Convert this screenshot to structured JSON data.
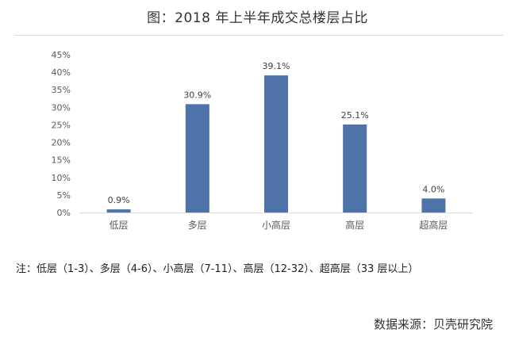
{
  "title": "图：2018 年上半年成交总楼层占比",
  "note": "注：低层（1-3）、多层（4-6）、小高层（7-11）、高层（12-32）、超高层（33 层以上）",
  "source": "数据来源：贝壳研究院",
  "colors": {
    "bar": "#4e73a8",
    "axis": "#d9d9d9",
    "text": "#595959"
  },
  "chart_data": {
    "type": "bar",
    "title": "图：2018 年上半年成交总楼层占比",
    "categories": [
      "低层",
      "多层",
      "小高层",
      "高层",
      "超高层"
    ],
    "values": [
      0.9,
      30.9,
      39.1,
      25.1,
      4.0
    ],
    "value_labels": [
      "0.9%",
      "30.9%",
      "39.1%",
      "25.1%",
      "4.0%"
    ],
    "ylim": [
      0,
      45
    ],
    "yticks": [
      0,
      5,
      10,
      15,
      20,
      25,
      30,
      35,
      40,
      45
    ],
    "ytick_labels": [
      "0%",
      "5%",
      "10%",
      "15%",
      "20%",
      "25%",
      "30%",
      "35%",
      "40%",
      "45%"
    ],
    "xlabel": "",
    "ylabel": "",
    "grid": false,
    "legend": "none"
  }
}
